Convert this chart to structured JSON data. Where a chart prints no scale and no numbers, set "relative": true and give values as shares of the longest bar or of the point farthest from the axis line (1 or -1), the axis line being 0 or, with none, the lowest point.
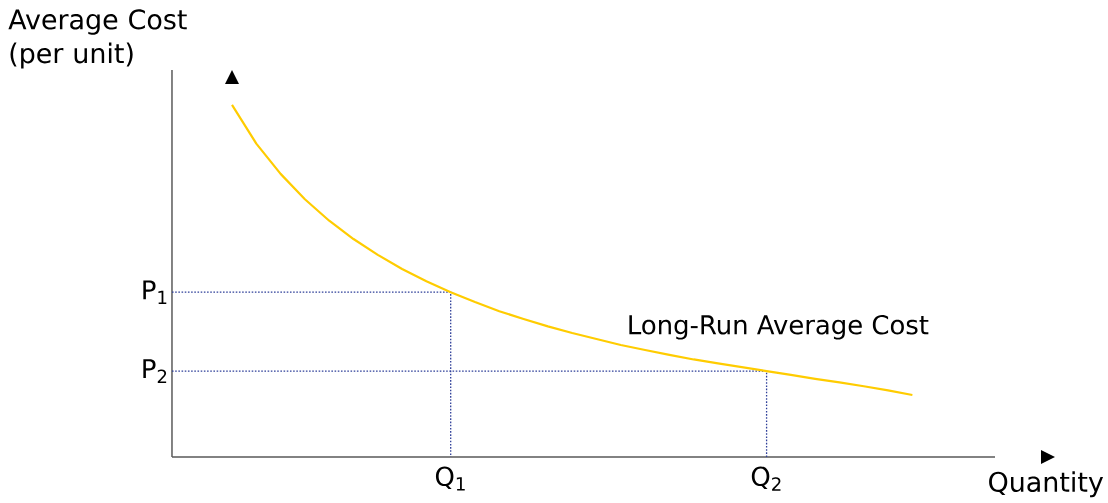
{
  "chart_data": {
    "type": "line",
    "relative": true,
    "xlabel": "Quantity",
    "ylabel": "Average Cost (per unit)",
    "categories": [
      null,
      null,
      null,
      null,
      null,
      null,
      null,
      null,
      null,
      "Q$_{1}$",
      null,
      null,
      null,
      null,
      null,
      null,
      null,
      null,
      null,
      null,
      null,
      null,
      "Q$_{2}$",
      null,
      null,
      null,
      null,
      null,
      null
    ],
    "series": [
      {
        "name": "Long-Run Average Cost",
        "color": "#ffcc00",
        "values": [
          1.0,
          0.89,
          0.804,
          0.732,
          0.671,
          0.619,
          0.574,
          0.534,
          0.499,
          0.468,
          0.44,
          0.414,
          0.392,
          0.371,
          0.352,
          0.335,
          0.318,
          0.304,
          0.29,
          0.277,
          0.266,
          0.255,
          0.244,
          0.233,
          0.222,
          0.212,
          0.201,
          0.189,
          0.176
        ]
      }
    ],
    "ref_lines": [
      {
        "axis": "y",
        "value": 0.468,
        "label": "P$_{1}$",
        "color": "#2e3f99",
        "line_style": "dotted"
      },
      {
        "axis": "y",
        "value": 0.244,
        "label": "P$_{2}$",
        "color": "#2e3f99",
        "line_style": "dotted"
      }
    ]
  }
}
